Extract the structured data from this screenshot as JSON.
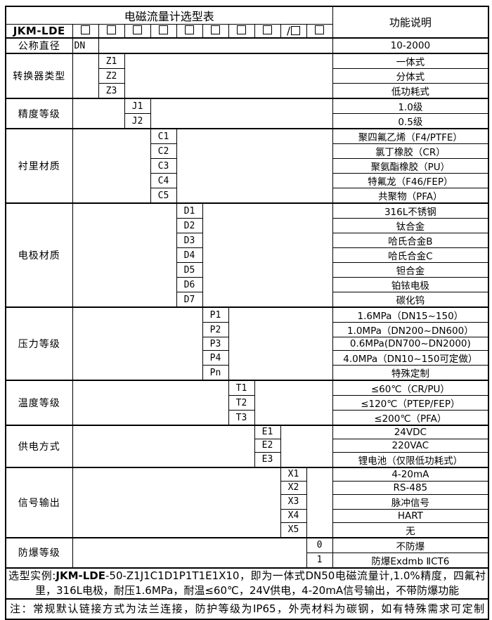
{
  "table": {
    "title": "电磁流量计选型表",
    "function_header": "功能说明",
    "model_prefix": "JKM-LDE",
    "checkbox_cells": [
      "□",
      "□",
      "□",
      "□",
      "□",
      "□",
      "□",
      "□",
      "/□",
      "□"
    ],
    "groups": [
      {
        "label": "公称直径",
        "col": 1,
        "rows": [
          {
            "code": "DN",
            "align": "left",
            "desc": "10-2000"
          }
        ]
      },
      {
        "label": "转换器类型",
        "col": 2,
        "rows": [
          {
            "code": "Z1",
            "desc": "一体式"
          },
          {
            "code": "Z2",
            "desc": "分体式"
          },
          {
            "code": "Z3",
            "desc": "低功耗式"
          }
        ]
      },
      {
        "label": "精度等级",
        "col": 3,
        "rows": [
          {
            "code": "J1",
            "desc": "1.0级"
          },
          {
            "code": "J2",
            "desc": "0.5级"
          }
        ]
      },
      {
        "label": "衬里材质",
        "col": 4,
        "rows": [
          {
            "code": "C1",
            "desc": "聚四氟乙烯（F4/PTFE）"
          },
          {
            "code": "C2",
            "desc": "氯丁橡胶（CR）"
          },
          {
            "code": "C3",
            "desc": "聚氨酯橡胶（PU）"
          },
          {
            "code": "C4",
            "desc": "特氟龙（F46/FEP）"
          },
          {
            "code": "C5",
            "desc": "共聚物（PFA）"
          }
        ]
      },
      {
        "label": "电极材质",
        "col": 5,
        "rows": [
          {
            "code": "D1",
            "desc": "316L不锈钢"
          },
          {
            "code": "D2",
            "desc": "钛合金"
          },
          {
            "code": "D3",
            "desc": "哈氏合金B"
          },
          {
            "code": "D4",
            "desc": "哈氏合金C"
          },
          {
            "code": "D5",
            "desc": "钽合金"
          },
          {
            "code": "D6",
            "desc": "铂铱电极"
          },
          {
            "code": "D7",
            "desc": "碳化钨"
          }
        ]
      },
      {
        "label": "压力等级",
        "col": 6,
        "rows": [
          {
            "code": "P1",
            "desc": "1.6MPa（DN15~150）"
          },
          {
            "code": "P2",
            "desc": "1.0MPa（DN200~DN600）"
          },
          {
            "code": "P3",
            "desc": "0.6MPa(DN700~DN2000)"
          },
          {
            "code": "P4",
            "desc": "4.0MPa（DN10~150可定做）"
          },
          {
            "code": "Pn",
            "desc": "特殊定制"
          }
        ]
      },
      {
        "label": "温度等级",
        "col": 7,
        "rows": [
          {
            "code": "T1",
            "desc": "≤60℃（CR/PU）"
          },
          {
            "code": "T2",
            "desc": "≤120℃（PTEP/FEP）"
          },
          {
            "code": "T3",
            "desc": "≤200℃（PFA）"
          }
        ]
      },
      {
        "label": "供电方式",
        "col": 8,
        "rows": [
          {
            "code": "E1",
            "desc": "24VDC"
          },
          {
            "code": "E2",
            "desc": "220VAC"
          },
          {
            "code": "E3",
            "desc": "锂电池（仅限低功耗式）"
          }
        ]
      },
      {
        "label": "信号输出",
        "col": 9,
        "rows": [
          {
            "code": "X1",
            "desc": "4-20mA"
          },
          {
            "code": "X2",
            "desc": "RS-485"
          },
          {
            "code": "X3",
            "desc": "脉冲信号"
          },
          {
            "code": "X4",
            "desc": "HART"
          },
          {
            "code": "X5",
            "desc": "无"
          }
        ]
      },
      {
        "label": "防爆等级",
        "col": 10,
        "rows": [
          {
            "code": "0",
            "desc": "不防爆"
          },
          {
            "code": "1",
            "desc": "防爆Exdmb ⅡCT6"
          }
        ]
      }
    ]
  },
  "footer": {
    "example_prefix": "选型实例:",
    "example_model": "JKM-LDE",
    "example_rest": "-50-Z1J1C1D1P1T1E1X10，即为一体式DN50电磁流量计,1.0%精度，四氟衬里，316L电极，耐压1.6MPa，耐温≤60℃，24V供电，4-20mA信号输出，不带防爆功能",
    "note": "注：常规默认链接方式为法兰连接，防护等级为IP65，外壳材料为碳钢，如有特殊需求可定制"
  },
  "colors": {
    "border": "#000000",
    "background": "#ffffff",
    "text": "#000000"
  }
}
